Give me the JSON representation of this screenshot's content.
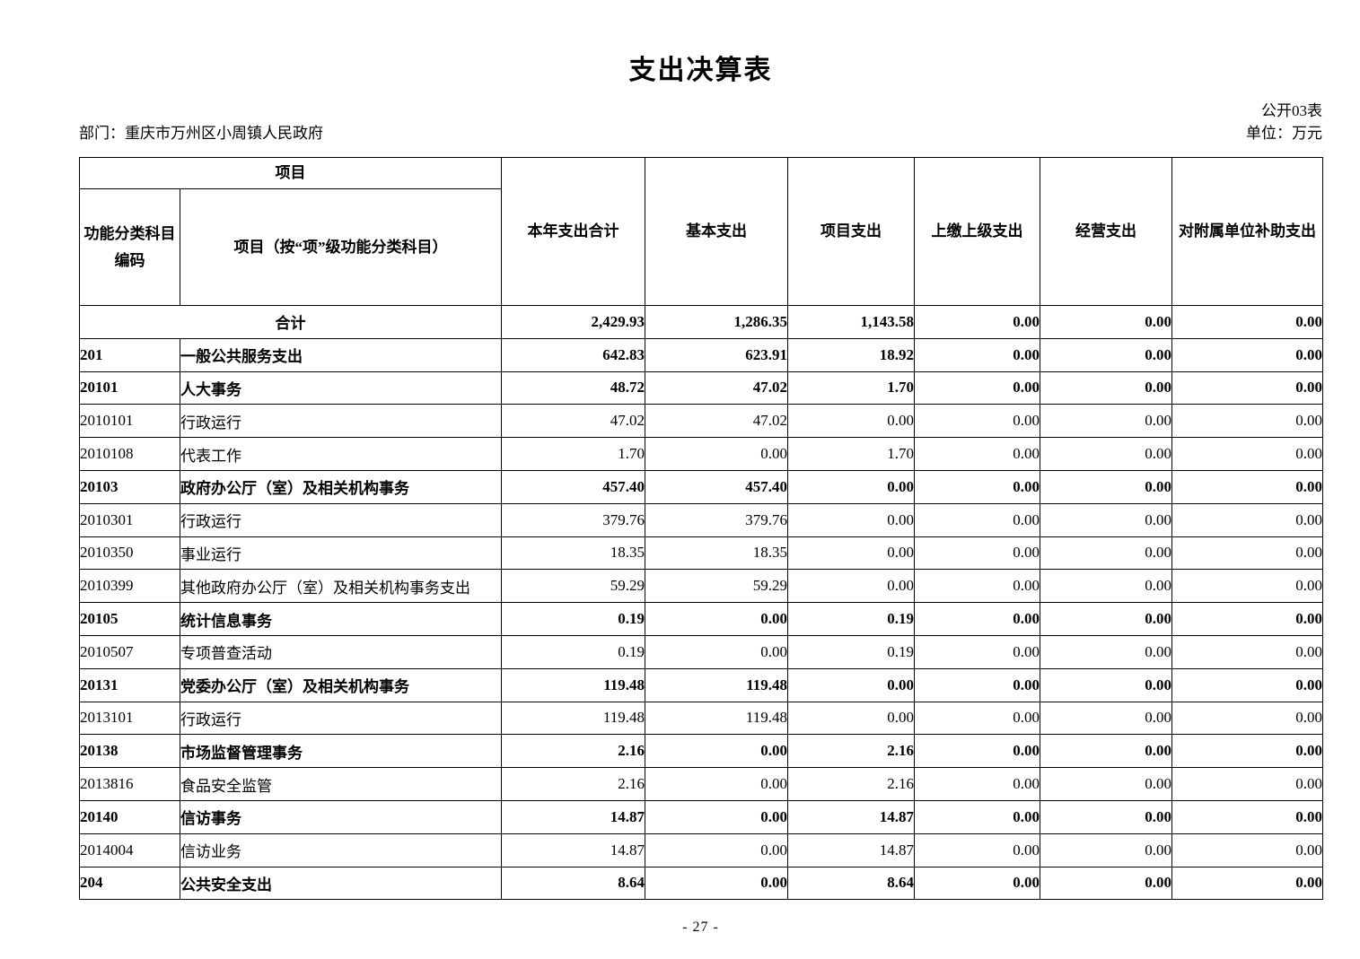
{
  "page": {
    "title": "支出决算表",
    "table_code": "公开03表",
    "department": "部门：重庆市万州区小周镇人民政府",
    "unit": "单位：万元",
    "page_number": "- 27 -"
  },
  "table": {
    "header": {
      "group_label": "项目",
      "col_code": "功能分类科目编码",
      "col_item": "项目（按“项”级功能分类科目）",
      "columns": [
        "本年支出合计",
        "基本支出",
        "项目支出",
        "上缴上级支出",
        "经营支出",
        "对附属单位补助支出"
      ]
    },
    "rows": [
      {
        "code": "",
        "item": "合计",
        "values": [
          "2,429.93",
          "1,286.35",
          "1,143.58",
          "0.00",
          "0.00",
          "0.00"
        ],
        "bold": true,
        "total": true
      },
      {
        "code": "201",
        "item": "一般公共服务支出",
        "values": [
          "642.83",
          "623.91",
          "18.92",
          "0.00",
          "0.00",
          "0.00"
        ],
        "bold": true
      },
      {
        "code": "20101",
        "item": "人大事务",
        "values": [
          "48.72",
          "47.02",
          "1.70",
          "0.00",
          "0.00",
          "0.00"
        ],
        "bold": true
      },
      {
        "code": "2010101",
        "item": "行政运行",
        "values": [
          "47.02",
          "47.02",
          "0.00",
          "0.00",
          "0.00",
          "0.00"
        ],
        "bold": false
      },
      {
        "code": "2010108",
        "item": "代表工作",
        "values": [
          "1.70",
          "0.00",
          "1.70",
          "0.00",
          "0.00",
          "0.00"
        ],
        "bold": false
      },
      {
        "code": "20103",
        "item": "政府办公厅（室）及相关机构事务",
        "values": [
          "457.40",
          "457.40",
          "0.00",
          "0.00",
          "0.00",
          "0.00"
        ],
        "bold": true
      },
      {
        "code": "2010301",
        "item": "行政运行",
        "values": [
          "379.76",
          "379.76",
          "0.00",
          "0.00",
          "0.00",
          "0.00"
        ],
        "bold": false
      },
      {
        "code": "2010350",
        "item": "事业运行",
        "values": [
          "18.35",
          "18.35",
          "0.00",
          "0.00",
          "0.00",
          "0.00"
        ],
        "bold": false
      },
      {
        "code": "2010399",
        "item": "其他政府办公厅（室）及相关机构事务支出",
        "values": [
          "59.29",
          "59.29",
          "0.00",
          "0.00",
          "0.00",
          "0.00"
        ],
        "bold": false
      },
      {
        "code": "20105",
        "item": "统计信息事务",
        "values": [
          "0.19",
          "0.00",
          "0.19",
          "0.00",
          "0.00",
          "0.00"
        ],
        "bold": true
      },
      {
        "code": "2010507",
        "item": "专项普查活动",
        "values": [
          "0.19",
          "0.00",
          "0.19",
          "0.00",
          "0.00",
          "0.00"
        ],
        "bold": false
      },
      {
        "code": "20131",
        "item": "党委办公厅（室）及相关机构事务",
        "values": [
          "119.48",
          "119.48",
          "0.00",
          "0.00",
          "0.00",
          "0.00"
        ],
        "bold": true
      },
      {
        "code": "2013101",
        "item": "行政运行",
        "values": [
          "119.48",
          "119.48",
          "0.00",
          "0.00",
          "0.00",
          "0.00"
        ],
        "bold": false
      },
      {
        "code": "20138",
        "item": "市场监督管理事务",
        "values": [
          "2.16",
          "0.00",
          "2.16",
          "0.00",
          "0.00",
          "0.00"
        ],
        "bold": true
      },
      {
        "code": "2013816",
        "item": "食品安全监管",
        "values": [
          "2.16",
          "0.00",
          "2.16",
          "0.00",
          "0.00",
          "0.00"
        ],
        "bold": false
      },
      {
        "code": "20140",
        "item": "信访事务",
        "values": [
          "14.87",
          "0.00",
          "14.87",
          "0.00",
          "0.00",
          "0.00"
        ],
        "bold": true
      },
      {
        "code": "2014004",
        "item": "信访业务",
        "values": [
          "14.87",
          "0.00",
          "14.87",
          "0.00",
          "0.00",
          "0.00"
        ],
        "bold": false
      },
      {
        "code": "204",
        "item": "公共安全支出",
        "values": [
          "8.64",
          "0.00",
          "8.64",
          "0.00",
          "0.00",
          "0.00"
        ],
        "bold": true
      }
    ]
  }
}
